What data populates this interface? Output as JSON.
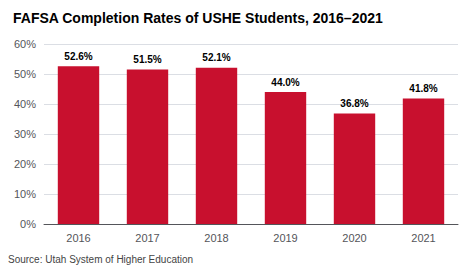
{
  "chart_data": {
    "type": "bar",
    "title": "FAFSA Completion Rates of USHE Students, 2016–2021",
    "categories": [
      "2016",
      "2017",
      "2018",
      "2019",
      "2020",
      "2021"
    ],
    "values": [
      52.6,
      51.5,
      52.1,
      44.0,
      36.8,
      41.8
    ],
    "value_labels": [
      "52.6%",
      "51.5%",
      "52.1%",
      "44.0%",
      "36.8%",
      "41.8%"
    ],
    "data_labels": true,
    "color": "#c8102e",
    "ylim": [
      0,
      60
    ],
    "yticks": [
      {
        "value": 0,
        "label": "0%"
      },
      {
        "value": 10,
        "label": "10%"
      },
      {
        "value": 20,
        "label": "20%"
      },
      {
        "value": 30,
        "label": "30%"
      },
      {
        "value": 40,
        "label": "40%"
      },
      {
        "value": 50,
        "label": "50%"
      },
      {
        "value": 60,
        "label": "60%"
      }
    ],
    "grid": true,
    "annotations": [
      "Source: Utah System of Higher Education"
    ]
  }
}
